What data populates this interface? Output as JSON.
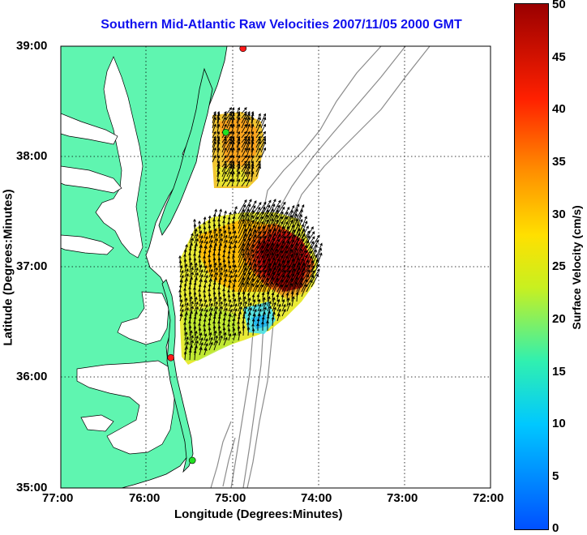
{
  "title": "Southern Mid-Atlantic Raw Velocities 2007/11/05 2000 GMT",
  "x_axis": {
    "label": "Longitude (Degrees:Minutes)",
    "ticks": [
      "77:00",
      "76:00",
      "75:00",
      "74:00",
      "73:00",
      "72:00"
    ]
  },
  "y_axis": {
    "label": "Latitude (Degrees:Minutes)",
    "ticks": [
      "39:00",
      "38:00",
      "37:00",
      "36:00",
      "35:00"
    ]
  },
  "colorbar": {
    "label": "Surface Velocity (cm/s)",
    "ticks": [
      "50",
      "45",
      "40",
      "35",
      "30",
      "25",
      "20",
      "15",
      "10",
      "5",
      "0"
    ],
    "range": [
      0,
      50
    ]
  },
  "colors": {
    "land": "#5ff5b0",
    "water": "#ffffff",
    "bathymetry": "#8c8c8c",
    "title": "#1010ee",
    "station_red": "#ff1a1a",
    "station_green": "#22e022"
  },
  "stations": [
    {
      "lon": -74.88,
      "lat": 38.98,
      "color": "red"
    },
    {
      "lon": -75.08,
      "lat": 38.22,
      "color": "green"
    },
    {
      "lon": -75.72,
      "lat": 36.18,
      "color": "red"
    },
    {
      "lon": -75.47,
      "lat": 35.25,
      "color": "green"
    }
  ]
}
